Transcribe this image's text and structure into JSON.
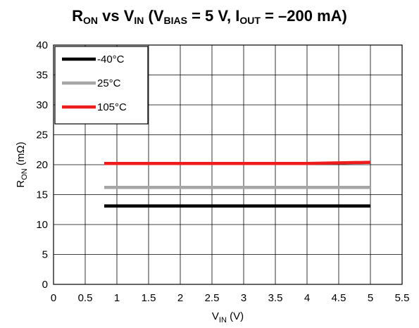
{
  "chart_data": {
    "type": "line",
    "title": {
      "r": "R",
      "r_sub": "ON",
      "vs": " vs V",
      "v_sub": "IN",
      "open": " (V",
      "bias_sub": "BIAS",
      "mid": " = 5 V, I",
      "out_sub": "OUT",
      "end": " = –200 mA)"
    },
    "xlabel": {
      "main": "V",
      "sub": "IN",
      "unit": " (V)"
    },
    "ylabel": {
      "main": "R",
      "sub": "ON",
      "unit": " (mΩ)"
    },
    "xlim": [
      0,
      5.5
    ],
    "ylim": [
      0,
      40
    ],
    "x_ticks": [
      0,
      0.5,
      1,
      1.5,
      2,
      2.5,
      3,
      3.5,
      4,
      4.5,
      5,
      5.5
    ],
    "y_ticks": [
      0,
      5,
      10,
      15,
      20,
      25,
      30,
      35,
      40
    ],
    "grid": true,
    "legend_position": "top-left",
    "series": [
      {
        "name": "-40°C",
        "color": "#000000",
        "x": [
          0.8,
          5
        ],
        "y": [
          13.1,
          13.1
        ]
      },
      {
        "name": "25°C",
        "color": "#a6a6a6",
        "x": [
          0.8,
          5
        ],
        "y": [
          16.2,
          16.2
        ]
      },
      {
        "name": "105°C",
        "color": "#ee1c1c",
        "x": [
          0.8,
          2,
          3,
          4,
          5
        ],
        "y": [
          20.2,
          20.2,
          20.2,
          20.2,
          20.4
        ]
      }
    ]
  }
}
